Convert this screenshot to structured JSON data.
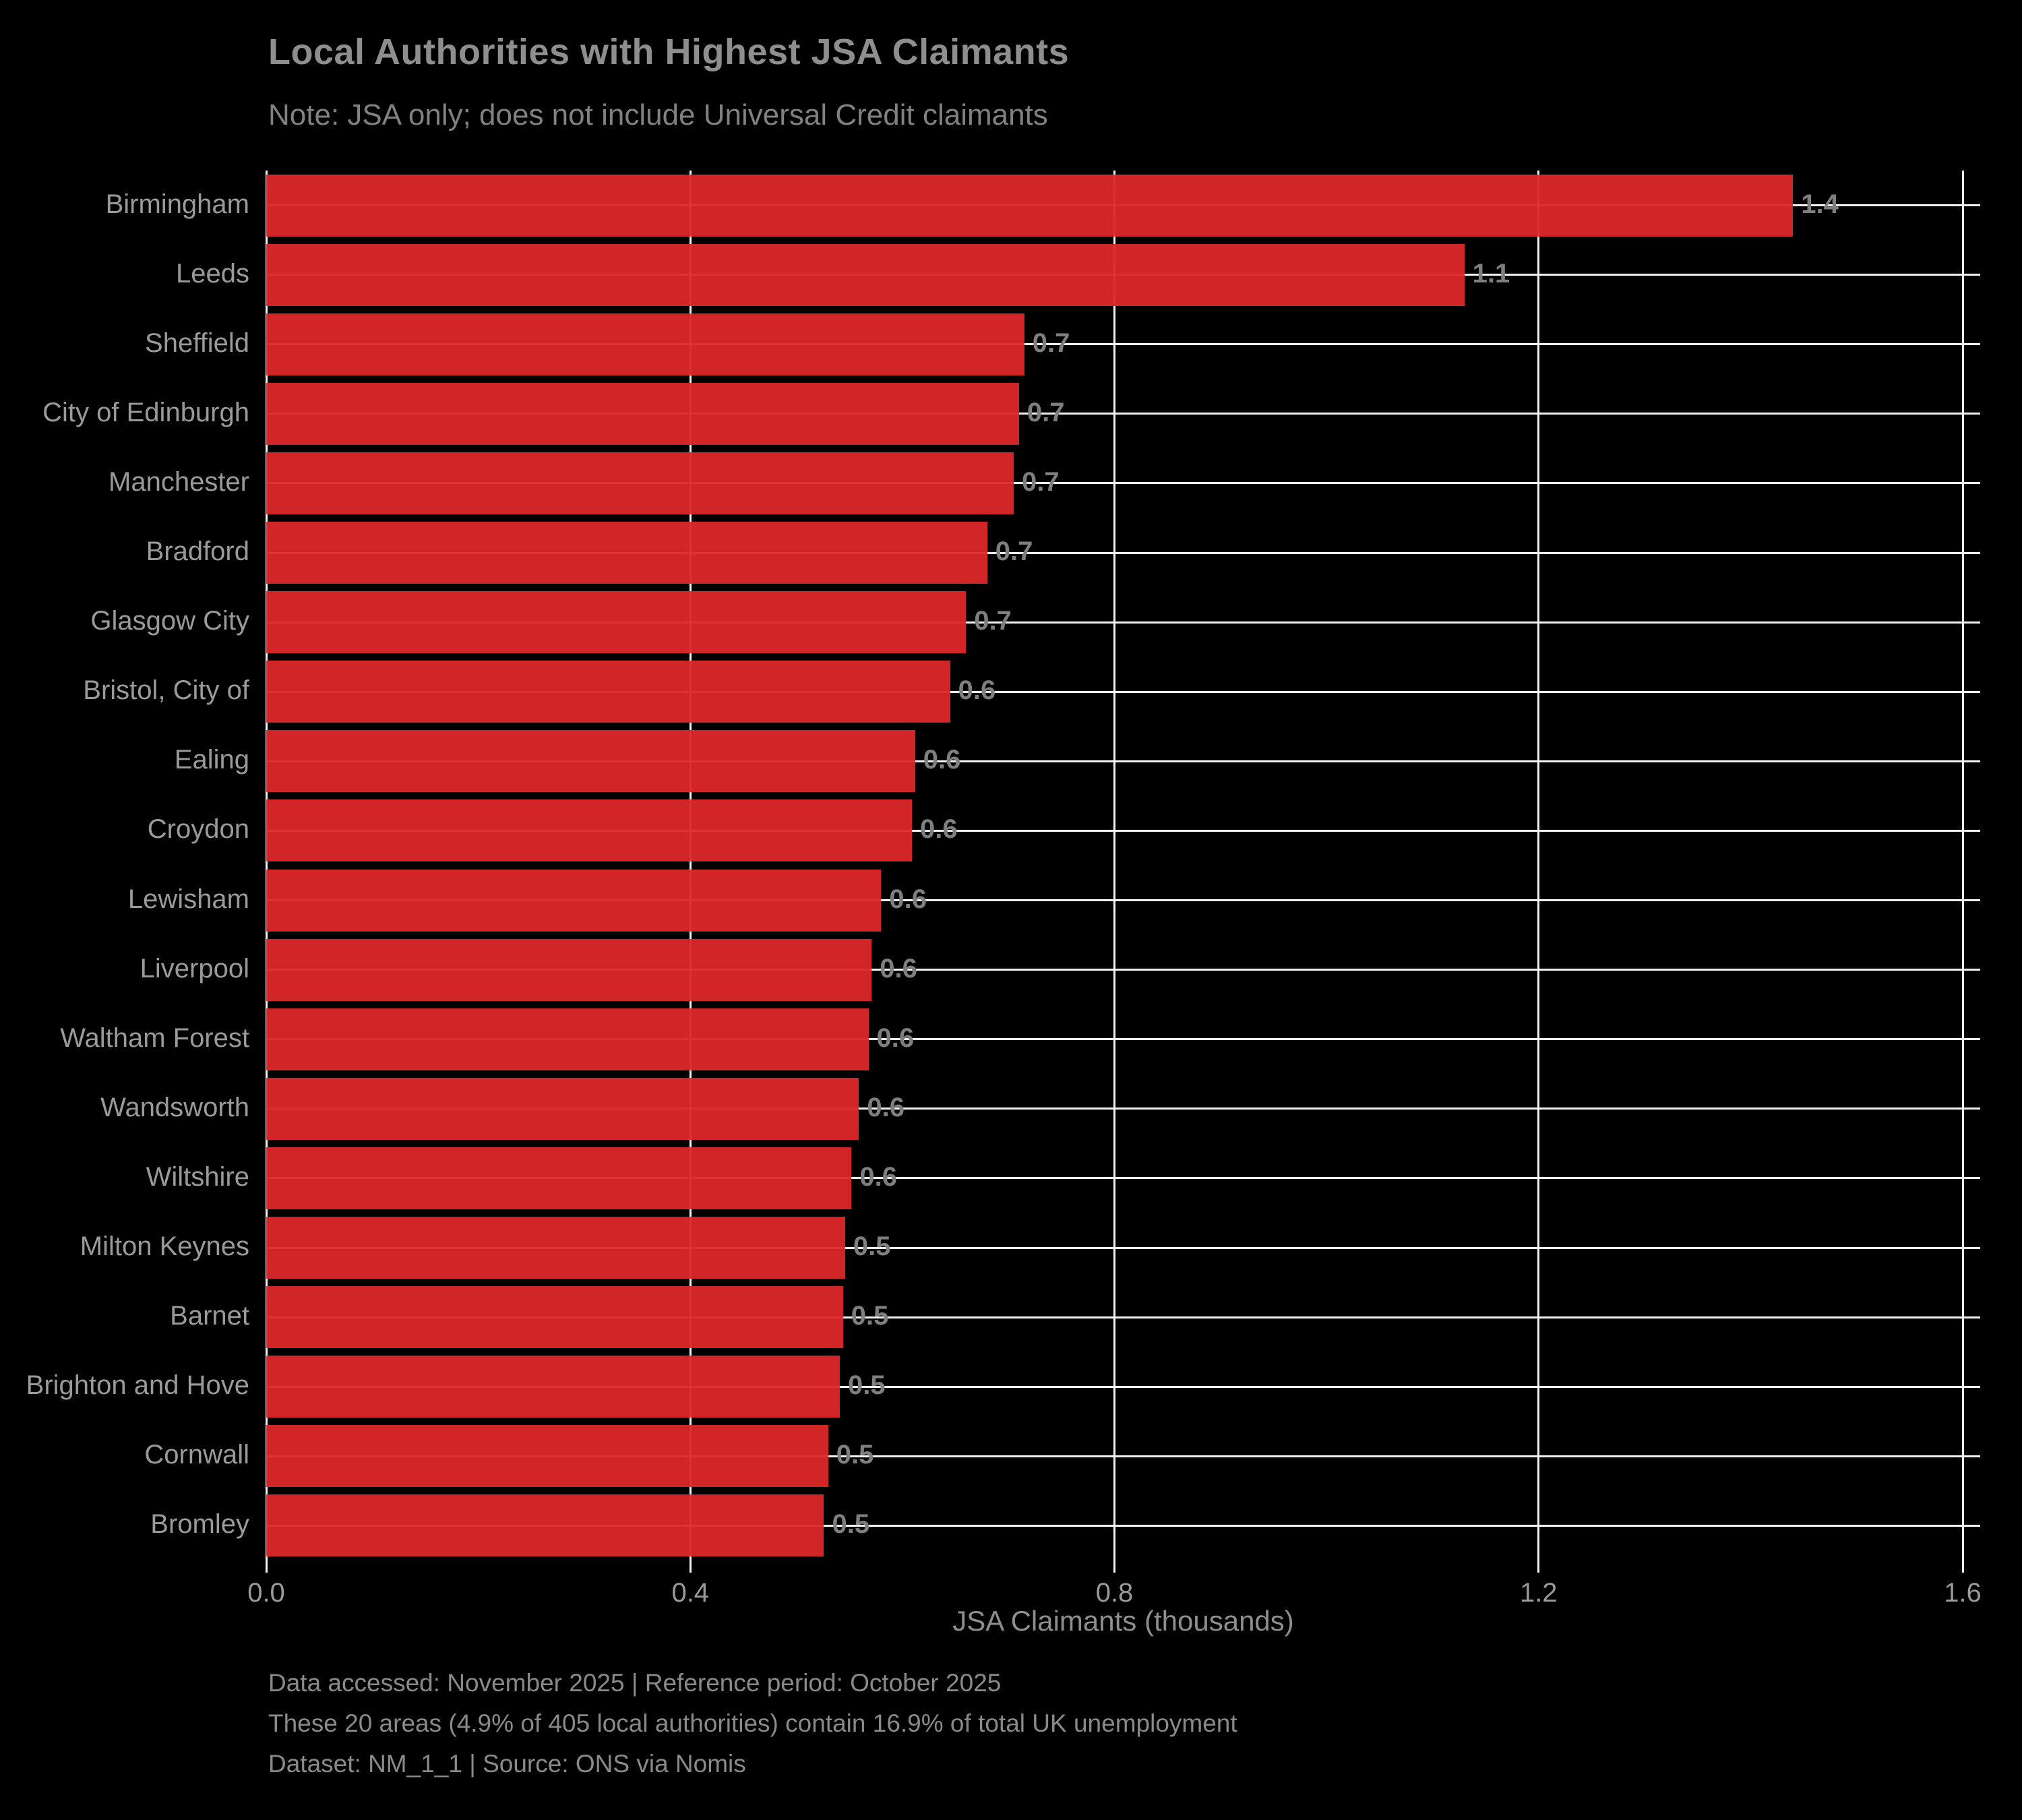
{
  "header": {
    "title": "Local Authorities with Highest JSA Claimants",
    "subtitle": "Note: JSA only; does not include Universal Credit claimants"
  },
  "chart_data": {
    "type": "bar",
    "orientation": "horizontal",
    "title": "Local Authorities with Highest JSA Claimants",
    "subtitle": "Note: JSA only; does not include Universal Credit claimants",
    "categories": [
      "Birmingham",
      "Leeds",
      "Sheffield",
      "City of Edinburgh",
      "Manchester",
      "Bradford",
      "Glasgow City",
      "Bristol, City of",
      "Ealing",
      "Croydon",
      "Lewisham",
      "Liverpool",
      "Waltham Forest",
      "Wandsworth",
      "Wiltshire",
      "Milton Keynes",
      "Barnet",
      "Brighton and Hove",
      "Cornwall",
      "Bromley"
    ],
    "values": [
      1.44,
      1.13,
      0.715,
      0.71,
      0.705,
      0.68,
      0.66,
      0.645,
      0.612,
      0.609,
      0.58,
      0.571,
      0.568,
      0.559,
      0.552,
      0.546,
      0.544,
      0.541,
      0.53,
      0.526
    ],
    "bar_labels": [
      "1.4",
      "1.1",
      "0.7",
      "0.7",
      "0.7",
      "0.7",
      "0.7",
      "0.6",
      "0.6",
      "0.6",
      "0.6",
      "0.6",
      "0.6",
      "0.6",
      "0.6",
      "0.5",
      "0.5",
      "0.5",
      "0.5",
      "0.5"
    ],
    "xlabel": "JSA Claimants (thousands)",
    "ylabel": "",
    "xlim": [
      0,
      1.6
    ],
    "x_ticks": [
      "0.0",
      "0.4",
      "0.8",
      "1.2",
      "1.6"
    ],
    "x_tick_values": [
      0,
      0.4,
      0.8,
      1.2,
      1.6
    ],
    "grid": true,
    "legend": false,
    "colors": {
      "bar": "#dc272a",
      "background": "#000000",
      "grid": "#f2f2f2",
      "title_text": "#8e8e8e",
      "tick_text": "#9a9a9a",
      "value_text": "#7f7f7f"
    }
  },
  "footer": {
    "line1": "Data accessed: November 2025 | Reference period: October 2025",
    "line2": "These 20 areas (4.9% of 405 local authorities) contain 16.9% of total UK unemployment",
    "line3": "Dataset: NM_1_1 | Source: ONS via Nomis"
  }
}
